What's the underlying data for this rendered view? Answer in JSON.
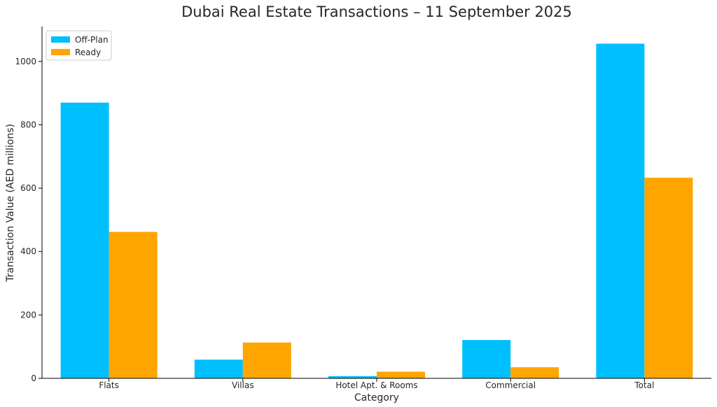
{
  "chart_data": {
    "type": "bar",
    "title": "Dubai Real Estate Transactions – 11 September 2025",
    "xlabel": "Category",
    "ylabel": "Transaction Value (AED millions)",
    "categories": [
      "Flats",
      "Villas",
      "Hotel Apt. & Rooms",
      "Commercial",
      "Total"
    ],
    "series": [
      {
        "name": "Off-Plan",
        "color": "#00BFFF",
        "values": [
          870,
          59,
          7,
          121,
          1056
        ]
      },
      {
        "name": "Ready",
        "color": "#FFA500",
        "values": [
          462,
          113,
          21,
          35,
          633
        ]
      }
    ],
    "ylim": [
      0,
      1110
    ],
    "yticks": [
      0,
      200,
      400,
      600,
      800,
      1000
    ],
    "grid": false,
    "legend": "top-left"
  }
}
